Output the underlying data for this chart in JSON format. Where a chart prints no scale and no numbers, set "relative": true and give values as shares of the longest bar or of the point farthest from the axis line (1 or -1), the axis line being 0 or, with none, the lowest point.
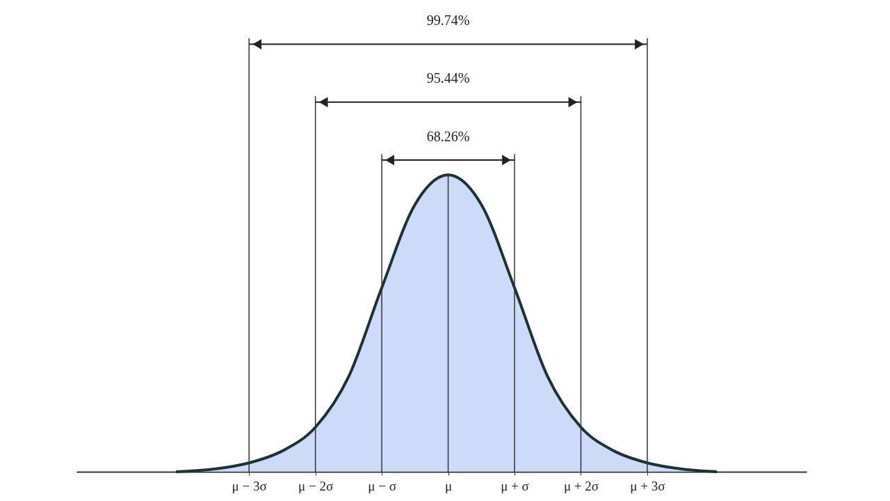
{
  "chart_data": {
    "type": "area",
    "relative": true,
    "x": [
      -4.1,
      -3.5,
      -3,
      -2.5,
      -2,
      -1.5,
      -1,
      -0.5,
      0,
      0.5,
      1,
      1.5,
      2,
      2.5,
      3,
      3.5,
      4.05
    ],
    "series": [
      {
        "color": "#b7ccf4",
        "values": [
          0,
          0.01,
          0.03,
          0.07,
          0.15,
          0.32,
          0.62,
          0.9,
          1,
          0.9,
          0.62,
          0.32,
          0.15,
          0.07,
          0.03,
          0.01,
          0
        ]
      }
    ],
    "xlim": [
      -5.6,
      5.4
    ],
    "xticks": [
      {
        "value": -3,
        "label": "μ − 3σ"
      },
      {
        "value": -2,
        "label": "μ − 2σ"
      },
      {
        "value": -1,
        "label": "μ − σ"
      },
      {
        "value": 0,
        "label": "μ"
      },
      {
        "value": 1,
        "label": "μ + σ"
      },
      {
        "value": 2,
        "label": "μ + 2σ"
      },
      {
        "value": 3,
        "label": "μ + 3σ"
      }
    ],
    "ref_lines": [
      {
        "axis": "x",
        "value": -3
      },
      {
        "axis": "x",
        "value": -2
      },
      {
        "axis": "x",
        "value": -1
      },
      {
        "axis": "x",
        "value": 0
      },
      {
        "axis": "x",
        "value": 1
      },
      {
        "axis": "x",
        "value": 2
      },
      {
        "axis": "x",
        "value": 3
      }
    ],
    "annotations": [
      "99.74%",
      "95.44%",
      "68.26%"
    ],
    "grid": false
  }
}
